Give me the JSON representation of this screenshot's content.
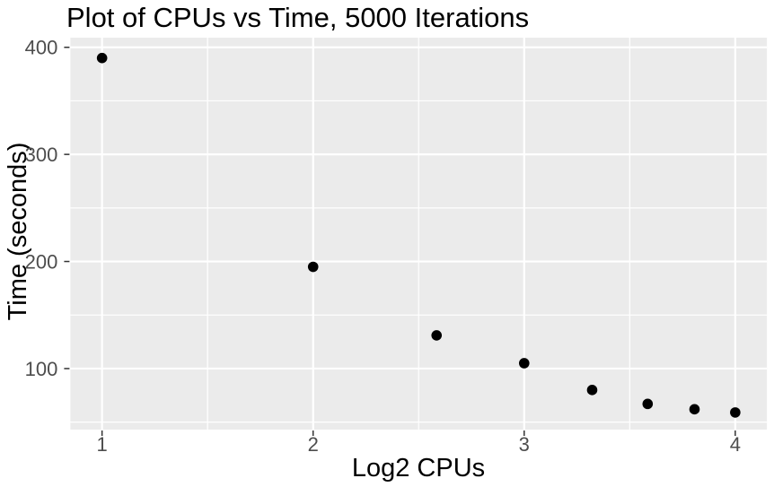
{
  "figure": {
    "title": "Plot of CPUs vs Time, 5000 Iterations"
  },
  "chart_data": {
    "type": "scatter",
    "title": "Plot of CPUs vs Time, 5000 Iterations",
    "xlabel": "Log2 CPUs",
    "ylabel": "Time (seconds)",
    "points": [
      {
        "x": 1.0,
        "y": 390
      },
      {
        "x": 2.0,
        "y": 195
      },
      {
        "x": 2.585,
        "y": 131
      },
      {
        "x": 3.0,
        "y": 105
      },
      {
        "x": 3.322,
        "y": 80
      },
      {
        "x": 3.585,
        "y": 67
      },
      {
        "x": 3.807,
        "y": 62
      },
      {
        "x": 4.0,
        "y": 59
      }
    ],
    "xlim": [
      0.85,
      4.15
    ],
    "ylim": [
      43,
      409
    ],
    "x_major_ticks": [
      1,
      2,
      3,
      4
    ],
    "y_major_ticks": [
      100,
      200,
      300,
      400
    ],
    "x_minor_gridlines": [
      1.5,
      2.5,
      3.5
    ],
    "y_minor_gridlines": [
      50,
      150,
      250,
      350
    ],
    "grid": true,
    "legend": "none",
    "colors": {
      "background": "#FFFFFF",
      "panel_bg": "#EBEBEB",
      "grid": "#FFFFFF",
      "point": "#000000",
      "tick_mark": "#333333",
      "tick_label": "#4D4D4D",
      "text": "#000000"
    }
  }
}
